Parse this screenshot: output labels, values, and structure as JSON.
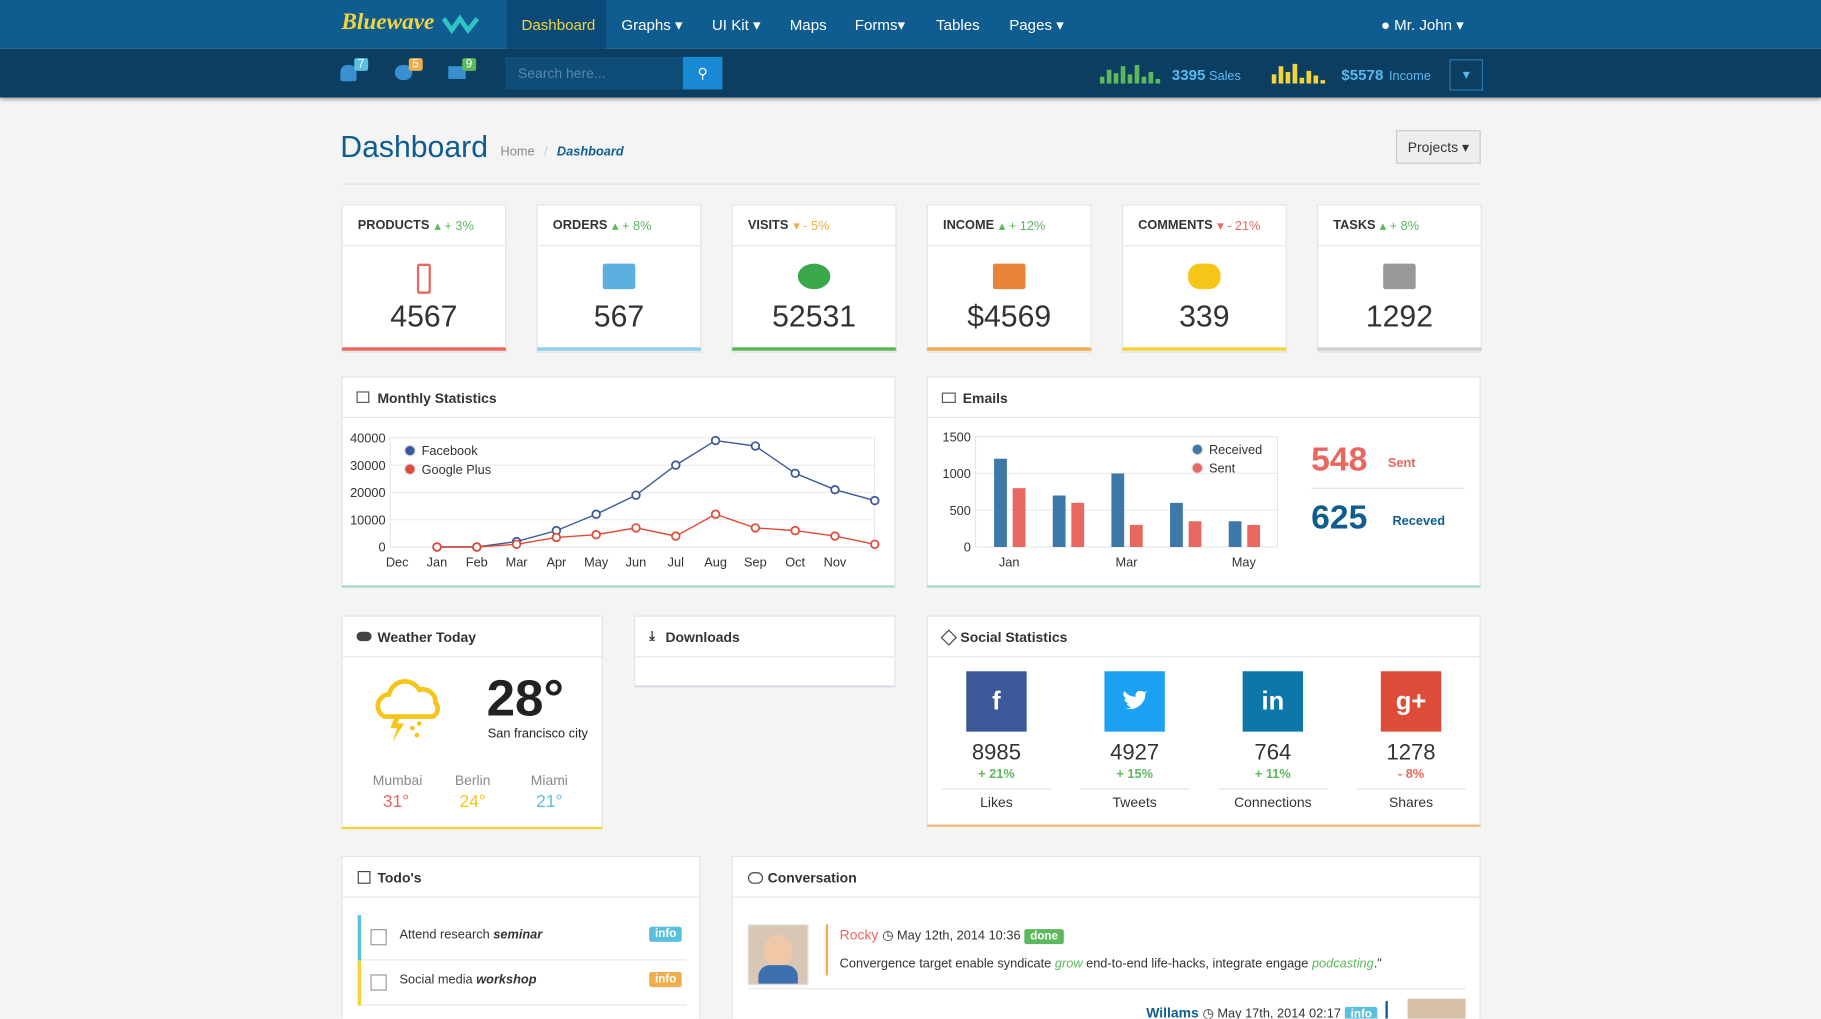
{
  "nav": {
    "brand": "Bluewave",
    "items": [
      "Dashboard",
      "Graphs",
      "UI Kit",
      "Maps",
      "Forms",
      "Tables",
      "Pages"
    ],
    "user": "Mr. John"
  },
  "subbar": {
    "badges": [
      "7",
      "5",
      "9"
    ],
    "search_placeholder": "Search here...",
    "sales": {
      "value": "3395",
      "label": "Sales"
    },
    "income": {
      "value": "$5578",
      "label": "Income"
    }
  },
  "page": {
    "title": "Dashboard",
    "breadcrumb": [
      "Home",
      "Dashboard"
    ],
    "button": "Projects"
  },
  "stats": [
    {
      "label": "PRODUCTS",
      "change": "+ 3%",
      "value": "4567"
    },
    {
      "label": "ORDERS",
      "change": "+ 8%",
      "value": "567"
    },
    {
      "label": "VISITS",
      "change": "- 5%",
      "value": "52531"
    },
    {
      "label": "INCOME",
      "change": "+ 12%",
      "value": "$4569"
    },
    {
      "label": "COMMENTS",
      "change": "- 21%",
      "value": "339"
    },
    {
      "label": "TASKS",
      "change": "+ 8%",
      "value": "1292"
    }
  ],
  "chart_data": [
    {
      "type": "line",
      "title": "Monthly Statistics",
      "categories": [
        "Dec",
        "Jan",
        "Feb",
        "Mar",
        "Apr",
        "May",
        "Jun",
        "Jul",
        "Aug",
        "Sep",
        "Oct",
        "Nov",
        null
      ],
      "series": [
        {
          "name": "Facebook",
          "color": "#3b5998",
          "values": [
            null,
            0,
            0,
            2000,
            6000,
            12000,
            19000,
            30000,
            39000,
            37000,
            27000,
            21000,
            17000
          ]
        },
        {
          "name": "Google Plus",
          "color": "#dd4b39",
          "values": [
            null,
            0,
            0,
            1000,
            3500,
            4500,
            7000,
            4000,
            12000,
            7000,
            6000,
            4000,
            1000
          ]
        }
      ],
      "ylim": [
        0,
        40000
      ],
      "yticks": [
        0,
        10000,
        20000,
        30000,
        40000
      ],
      "grid": true
    },
    {
      "type": "bar",
      "title": "Emails",
      "categories": [
        "Jan",
        null,
        "Mar",
        null,
        "May"
      ],
      "series": [
        {
          "name": "Received",
          "color": "#3d78a8",
          "values": [
            1200,
            700,
            1000,
            600,
            350
          ]
        },
        {
          "name": "Sent",
          "color": "#e8675f",
          "values": [
            800,
            600,
            300,
            350,
            300
          ]
        }
      ],
      "ylim": [
        0,
        1500
      ],
      "yticks": [
        0,
        500,
        1000,
        1500
      ],
      "grid": true
    }
  ],
  "emails_summary": {
    "sent": {
      "value": "548",
      "label": "Sent"
    },
    "received": {
      "value": "625",
      "label": "Receved"
    }
  },
  "weather": {
    "title": "Weather Today",
    "temp": "28°",
    "city": "San francisco city",
    "cities": [
      {
        "name": "Mumbai",
        "temp": "31°"
      },
      {
        "name": "Berlin",
        "temp": "24°"
      },
      {
        "name": "Miami",
        "temp": "21°"
      }
    ]
  },
  "downloads": {
    "title": "Downloads"
  },
  "social": {
    "title": "Social Statistics",
    "items": [
      {
        "value": "8985",
        "change": "+ 21%",
        "label": "Likes"
      },
      {
        "value": "4927",
        "change": "+ 15%",
        "label": "Tweets"
      },
      {
        "value": "764",
        "change": "+ 11%",
        "label": "Connections"
      },
      {
        "value": "1278",
        "change": "- 8%",
        "label": "Shares"
      }
    ]
  },
  "todos": {
    "title": "Todo's",
    "items": [
      {
        "text": "Attend research ",
        "em": "seminar",
        "tag": "info"
      },
      {
        "text": "Social media ",
        "em": "workshop",
        "tag": "info"
      }
    ]
  },
  "conversation": {
    "title": "Conversation",
    "messages": [
      {
        "author": "Rocky",
        "time": "May 12th, 2014 10:36",
        "tag": "done",
        "parts": [
          "Convergence target enable syndicate ",
          "grow",
          " end-to-end life-hacks, integrate engage ",
          "podcasting",
          ".\""
        ]
      },
      {
        "author": "Willams",
        "time": "May 17th, 2014 02:17",
        "tag": "info"
      }
    ]
  }
}
